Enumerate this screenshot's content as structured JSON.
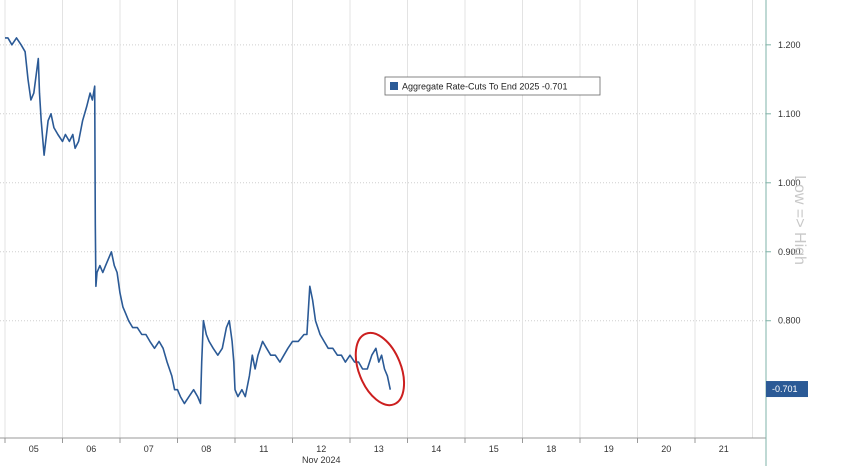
{
  "chart_data": {
    "type": "line",
    "legend": "Aggregate Rate-Cuts To End 2025 -0.701",
    "y_axis_note": "Low => High",
    "x_month_label": "Nov 2024",
    "x_tick_labels": [
      "05",
      "06",
      "07",
      "08",
      "11",
      "12",
      "13",
      "14",
      "15",
      "18",
      "19",
      "20",
      "21"
    ],
    "y_ticks": [
      1.2,
      1.1,
      1.0,
      0.9,
      0.8
    ],
    "y_tick_labels": [
      "1.200",
      "1.100",
      "1.000",
      "0.900",
      "0.800"
    ],
    "ylim": [
      0.63,
      1.265
    ],
    "last_value": 0.701,
    "last_value_label": "-0.701",
    "grid": true,
    "legend_placement": "top-center",
    "series": [
      {
        "name": "Aggregate Rate-Cuts To End 2025",
        "color": "#2b5a96",
        "points": [
          [
            0.0,
            1.21
          ],
          [
            0.05,
            1.21
          ],
          [
            0.12,
            1.2
          ],
          [
            0.2,
            1.21
          ],
          [
            0.28,
            1.2
          ],
          [
            0.35,
            1.19
          ],
          [
            0.4,
            1.15
          ],
          [
            0.45,
            1.12
          ],
          [
            0.5,
            1.13
          ],
          [
            0.58,
            1.18
          ],
          [
            0.6,
            1.13
          ],
          [
            0.63,
            1.09
          ],
          [
            0.68,
            1.04
          ],
          [
            0.75,
            1.09
          ],
          [
            0.8,
            1.1
          ],
          [
            0.85,
            1.08
          ],
          [
            0.92,
            1.07
          ],
          [
            1.0,
            1.06
          ],
          [
            1.05,
            1.07
          ],
          [
            1.12,
            1.06
          ],
          [
            1.18,
            1.07
          ],
          [
            1.22,
            1.05
          ],
          [
            1.28,
            1.06
          ],
          [
            1.35,
            1.09
          ],
          [
            1.42,
            1.11
          ],
          [
            1.48,
            1.13
          ],
          [
            1.52,
            1.12
          ],
          [
            1.56,
            1.14
          ],
          [
            1.57,
            0.94
          ],
          [
            1.58,
            0.85
          ],
          [
            1.6,
            0.87
          ],
          [
            1.65,
            0.88
          ],
          [
            1.7,
            0.87
          ],
          [
            1.75,
            0.88
          ],
          [
            1.8,
            0.89
          ],
          [
            1.85,
            0.9
          ],
          [
            1.9,
            0.88
          ],
          [
            1.95,
            0.87
          ],
          [
            2.0,
            0.84
          ],
          [
            2.05,
            0.82
          ],
          [
            2.1,
            0.81
          ],
          [
            2.15,
            0.8
          ],
          [
            2.22,
            0.79
          ],
          [
            2.3,
            0.79
          ],
          [
            2.38,
            0.78
          ],
          [
            2.45,
            0.78
          ],
          [
            2.52,
            0.77
          ],
          [
            2.6,
            0.76
          ],
          [
            2.68,
            0.77
          ],
          [
            2.75,
            0.76
          ],
          [
            2.82,
            0.74
          ],
          [
            2.9,
            0.72
          ],
          [
            2.95,
            0.7
          ],
          [
            3.0,
            0.7
          ],
          [
            3.05,
            0.69
          ],
          [
            3.12,
            0.68
          ],
          [
            3.2,
            0.69
          ],
          [
            3.28,
            0.7
          ],
          [
            3.35,
            0.69
          ],
          [
            3.4,
            0.68
          ],
          [
            3.42,
            0.74
          ],
          [
            3.45,
            0.8
          ],
          [
            3.5,
            0.78
          ],
          [
            3.55,
            0.77
          ],
          [
            3.62,
            0.76
          ],
          [
            3.7,
            0.75
          ],
          [
            3.78,
            0.76
          ],
          [
            3.85,
            0.79
          ],
          [
            3.9,
            0.8
          ],
          [
            3.95,
            0.77
          ],
          [
            3.98,
            0.74
          ],
          [
            4.0,
            0.7
          ],
          [
            4.05,
            0.69
          ],
          [
            4.12,
            0.7
          ],
          [
            4.18,
            0.69
          ],
          [
            4.25,
            0.72
          ],
          [
            4.3,
            0.75
          ],
          [
            4.35,
            0.73
          ],
          [
            4.4,
            0.75
          ],
          [
            4.48,
            0.77
          ],
          [
            4.55,
            0.76
          ],
          [
            4.62,
            0.75
          ],
          [
            4.7,
            0.75
          ],
          [
            4.78,
            0.74
          ],
          [
            4.85,
            0.75
          ],
          [
            4.92,
            0.76
          ],
          [
            5.0,
            0.77
          ],
          [
            5.1,
            0.77
          ],
          [
            5.2,
            0.78
          ],
          [
            5.25,
            0.78
          ],
          [
            5.3,
            0.85
          ],
          [
            5.35,
            0.83
          ],
          [
            5.4,
            0.8
          ],
          [
            5.48,
            0.78
          ],
          [
            5.55,
            0.77
          ],
          [
            5.62,
            0.76
          ],
          [
            5.7,
            0.76
          ],
          [
            5.78,
            0.75
          ],
          [
            5.85,
            0.75
          ],
          [
            5.92,
            0.74
          ],
          [
            6.0,
            0.75
          ],
          [
            6.08,
            0.74
          ],
          [
            6.15,
            0.74
          ],
          [
            6.22,
            0.73
          ],
          [
            6.3,
            0.73
          ],
          [
            6.38,
            0.75
          ],
          [
            6.45,
            0.76
          ],
          [
            6.5,
            0.74
          ],
          [
            6.55,
            0.75
          ],
          [
            6.6,
            0.73
          ],
          [
            6.65,
            0.72
          ],
          [
            6.7,
            0.7
          ]
        ]
      }
    ]
  }
}
